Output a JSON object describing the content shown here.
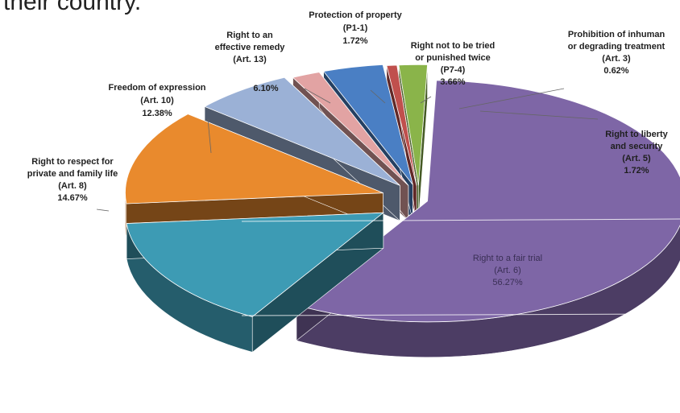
{
  "page": {
    "heading": "their country."
  },
  "chart_data": {
    "type": "pie",
    "style": "3d-exploded",
    "slices": [
      {
        "name": "Right to a fair trial",
        "article": "(Art. 6)",
        "value": 56.27,
        "value_label": "56.27%",
        "color": "#7e66a6"
      },
      {
        "name": "Right to respect for private and family life",
        "article": "(Art. 8)",
        "value": 14.67,
        "value_label": "14.67%",
        "color": "#3d9bb4"
      },
      {
        "name": "Freedom of expression",
        "article": "(Art. 10)",
        "value": 12.38,
        "value_label": "12.38%",
        "color": "#e98a2d"
      },
      {
        "name": "Right to an effective remedy",
        "article": "(Art. 13)",
        "value": 6.1,
        "value_label": "6.10%",
        "color": "#9bb1d6"
      },
      {
        "name": "Protection of property",
        "article": "(P1-1)",
        "value": 1.72,
        "value_label": "1.72%",
        "color": "#e2a3a3"
      },
      {
        "name": "Right not to be tried or punished twice",
        "article": "(P7-4)",
        "value": 3.66,
        "value_label": "3.66%",
        "color": "#4a7fc4"
      },
      {
        "name": "Prohibition of inhuman or degrading treatment",
        "article": "(Art. 3)",
        "value": 0.62,
        "value_label": "0.62%",
        "color": "#c0504d"
      },
      {
        "name": "Right to liberty and security",
        "article": "(Art. 5)",
        "value": 1.72,
        "value_label": "1.72%",
        "color": "#8ab44a"
      }
    ],
    "labels": [
      {
        "lines": [
          "Right to a fair trial",
          "(Art. 6)",
          "56.27%"
        ]
      },
      {
        "lines": [
          "Right to respect for",
          "private and family life",
          "(Art. 8)",
          "14.67%"
        ]
      },
      {
        "lines": [
          "Freedom of expression",
          "(Art. 10)",
          "12.38%"
        ]
      },
      {
        "lines": [
          "Right to an",
          "effective remedy",
          "(Art. 13)"
        ]
      },
      {
        "lines": [
          "Protection of property",
          "(P1-1)",
          "1.72%"
        ]
      },
      {
        "lines": [
          "Right not to be tried",
          "or punished twice",
          "(P7-4)",
          "3.66%"
        ]
      },
      {
        "lines": [
          "Prohibition of inhuman",
          "or degrading treatment",
          "(Art. 3)",
          "0.62%"
        ]
      },
      {
        "lines": [
          "Right to liberty",
          "and security",
          "(Art. 5)",
          "1.72%"
        ]
      }
    ],
    "extra_texts": [
      "6.10%"
    ]
  }
}
